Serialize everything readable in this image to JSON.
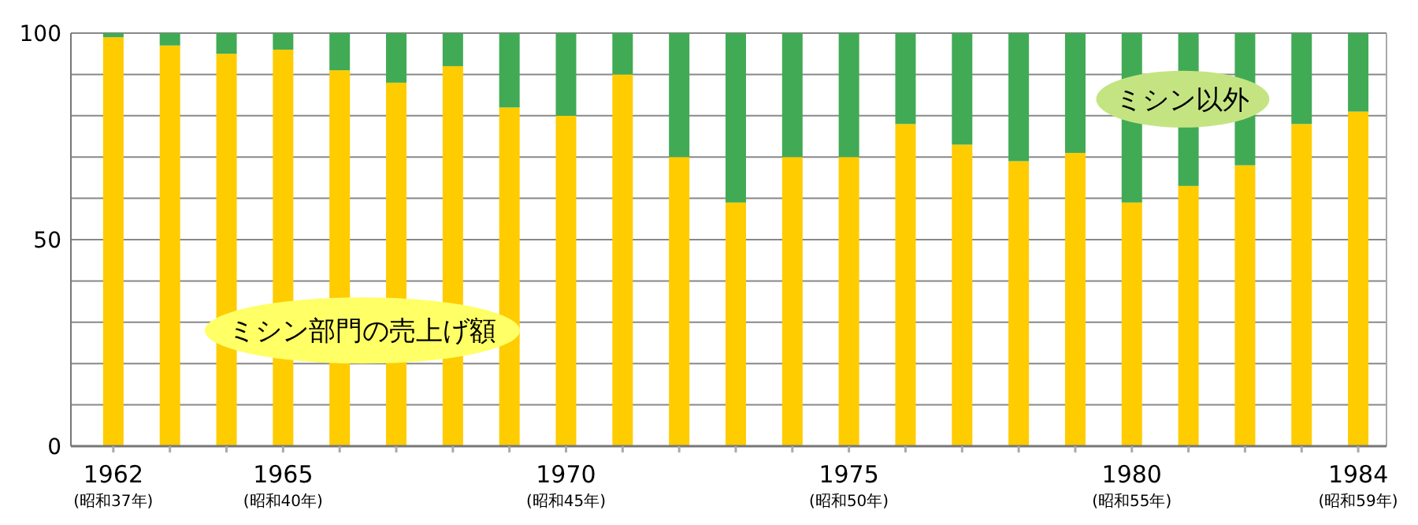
{
  "chart_data": {
    "type": "bar",
    "stacked": true,
    "categories": [
      "1962\n(昭和37年)",
      null,
      null,
      "1965\n(昭和40年)",
      null,
      null,
      null,
      null,
      "1970\n(昭和45年)",
      null,
      null,
      null,
      null,
      "1975\n(昭和50年)",
      null,
      null,
      null,
      null,
      "1980\n(昭和55年)",
      null,
      null,
      null,
      "1984\n(昭和59年)"
    ],
    "series": [
      {
        "name": "ミシン部門の売上げ額",
        "color": "#ffcc00",
        "values": [
          99,
          97,
          95,
          96,
          91,
          88,
          92,
          82,
          80,
          90,
          70,
          59,
          70,
          70,
          78,
          73,
          69,
          71,
          59,
          63,
          68,
          78,
          81
        ]
      },
      {
        "name": "ミシン以外",
        "color": "#41aa55",
        "values": [
          1,
          3,
          5,
          4,
          9,
          12,
          8,
          18,
          20,
          10,
          30,
          41,
          30,
          30,
          22,
          27,
          31,
          29,
          41,
          37,
          32,
          22,
          19
        ]
      }
    ],
    "ylim": [
      0,
      100
    ],
    "yticks": [
      0,
      {
        "value": 10,
        "label": null
      },
      {
        "value": 20,
        "label": null
      },
      {
        "value": 30,
        "label": null
      },
      {
        "value": 40,
        "label": null
      },
      50,
      {
        "value": 60,
        "label": null
      },
      {
        "value": 70,
        "label": null
      },
      {
        "value": 80,
        "label": null
      },
      {
        "value": 90,
        "label": null
      },
      100
    ],
    "grid": "y",
    "legend": false
  }
}
